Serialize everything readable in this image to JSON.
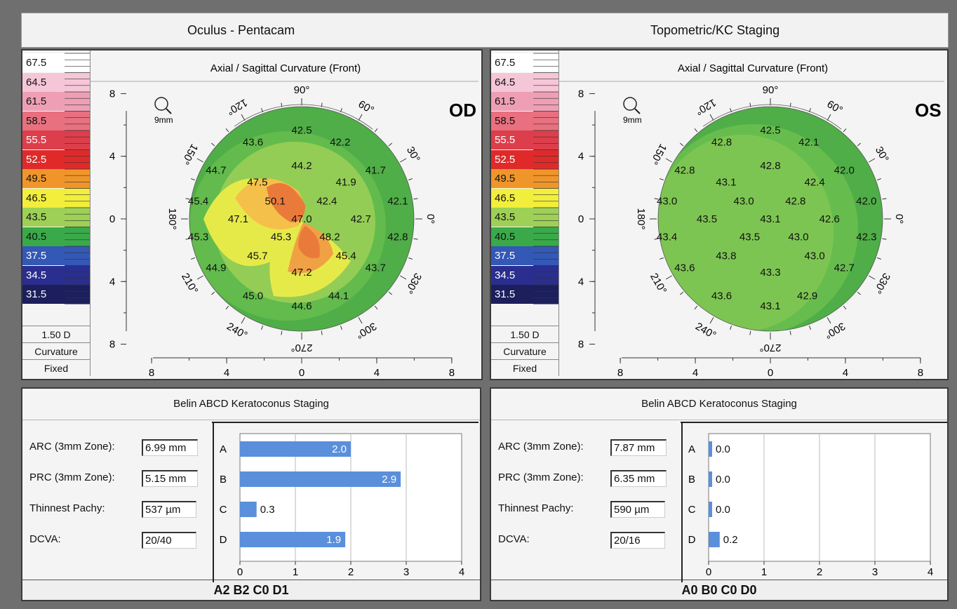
{
  "header": {
    "left_title": "Oculus - Pentacam",
    "right_title": "Topometric/KC Staging"
  },
  "scale": {
    "steps": [
      "67.5",
      "64.5",
      "61.5",
      "58.5",
      "55.5",
      "52.5",
      "49.5",
      "46.5",
      "43.5",
      "40.5",
      "37.5",
      "34.5",
      "31.5"
    ],
    "colors": [
      "#ffffff",
      "#f5c6d8",
      "#ee9fb6",
      "#e8707f",
      "#dd3e4b",
      "#e02a2a",
      "#f0952a",
      "#f2ee3c",
      "#9ed055",
      "#3aa94a",
      "#3358b6",
      "#2a2e8f",
      "#1c1f5c"
    ],
    "step_label": "1.50 D",
    "type_label": "Curvature",
    "mode_label": "Fixed"
  },
  "maps": [
    {
      "eye": "OD",
      "title": "Axial / Sagittal Curvature (Front)",
      "zoom_label": "9mm",
      "angle_labels": [
        "90°",
        "60°",
        "30°",
        "0°",
        "330°",
        "300°",
        "270°",
        "240°",
        "210°",
        "180°",
        "150°",
        "120°"
      ],
      "y_ticks": [
        "8",
        "4",
        "0",
        "4",
        "8"
      ],
      "x_ticks": [
        "8",
        "4",
        "0",
        "4",
        "8"
      ],
      "values": [
        {
          "v": "42.5",
          "x": 0.0,
          "y": 6.0
        },
        {
          "v": "43.6",
          "x": -3.3,
          "y": 5.2
        },
        {
          "v": "42.2",
          "x": 2.6,
          "y": 5.2
        },
        {
          "v": "44.7",
          "x": -5.8,
          "y": 3.3
        },
        {
          "v": "44.2",
          "x": 0.0,
          "y": 3.6
        },
        {
          "v": "41.7",
          "x": 5.0,
          "y": 3.3
        },
        {
          "v": "47.5",
          "x": -3.0,
          "y": 2.5
        },
        {
          "v": "41.9",
          "x": 3.0,
          "y": 2.5
        },
        {
          "v": "45.4",
          "x": -7.0,
          "y": 1.2
        },
        {
          "v": "50.1",
          "x": -1.8,
          "y": 1.2
        },
        {
          "v": "42.4",
          "x": 1.7,
          "y": 1.2
        },
        {
          "v": "42.1",
          "x": 6.5,
          "y": 1.2
        },
        {
          "v": "47.1",
          "x": -4.3,
          "y": 0.0
        },
        {
          "v": "47.0",
          "x": 0.0,
          "y": 0.0
        },
        {
          "v": "42.7",
          "x": 4.0,
          "y": 0.0
        },
        {
          "v": "45.3",
          "x": -7.0,
          "y": -1.2
        },
        {
          "v": "45.3",
          "x": -1.4,
          "y": -1.2
        },
        {
          "v": "48.2",
          "x": 1.9,
          "y": -1.2
        },
        {
          "v": "42.8",
          "x": 6.5,
          "y": -1.2
        },
        {
          "v": "45.7",
          "x": -3.0,
          "y": -2.5
        },
        {
          "v": "45.4",
          "x": 3.0,
          "y": -2.5
        },
        {
          "v": "44.9",
          "x": -5.8,
          "y": -3.3
        },
        {
          "v": "47.2",
          "x": 0.0,
          "y": -3.6
        },
        {
          "v": "43.7",
          "x": 5.0,
          "y": -3.3
        },
        {
          "v": "45.0",
          "x": -3.3,
          "y": -5.2
        },
        {
          "v": "44.6",
          "x": 0.0,
          "y": -5.9
        },
        {
          "v": "44.1",
          "x": 2.5,
          "y": -5.2
        }
      ]
    },
    {
      "eye": "OS",
      "title": "Axial / Sagittal Curvature (Front)",
      "zoom_label": "9mm",
      "angle_labels": [
        "90°",
        "60°",
        "30°",
        "0°",
        "330°",
        "300°",
        "270°",
        "240°",
        "210°",
        "180°",
        "150°",
        "120°"
      ],
      "y_ticks": [
        "8",
        "4",
        "0",
        "4",
        "8"
      ],
      "x_ticks": [
        "8",
        "4",
        "0",
        "4",
        "8"
      ],
      "values": [
        {
          "v": "42.5",
          "x": 0.0,
          "y": 6.0
        },
        {
          "v": "42.8",
          "x": -3.3,
          "y": 5.2
        },
        {
          "v": "42.1",
          "x": 2.6,
          "y": 5.2
        },
        {
          "v": "42.8",
          "x": -5.8,
          "y": 3.3
        },
        {
          "v": "42.8",
          "x": 0.0,
          "y": 3.6
        },
        {
          "v": "42.0",
          "x": 5.0,
          "y": 3.3
        },
        {
          "v": "43.1",
          "x": -3.0,
          "y": 2.5
        },
        {
          "v": "42.4",
          "x": 3.0,
          "y": 2.5
        },
        {
          "v": "43.0",
          "x": -7.0,
          "y": 1.2
        },
        {
          "v": "43.0",
          "x": -1.8,
          "y": 1.2
        },
        {
          "v": "42.8",
          "x": 1.7,
          "y": 1.2
        },
        {
          "v": "42.0",
          "x": 6.5,
          "y": 1.2
        },
        {
          "v": "43.5",
          "x": -4.3,
          "y": 0.0
        },
        {
          "v": "43.1",
          "x": 0.0,
          "y": 0.0
        },
        {
          "v": "42.6",
          "x": 4.0,
          "y": 0.0
        },
        {
          "v": "43.4",
          "x": -7.0,
          "y": -1.2
        },
        {
          "v": "43.5",
          "x": -1.4,
          "y": -1.2
        },
        {
          "v": "43.0",
          "x": 1.9,
          "y": -1.2
        },
        {
          "v": "42.3",
          "x": 6.5,
          "y": -1.2
        },
        {
          "v": "43.8",
          "x": -3.0,
          "y": -2.5
        },
        {
          "v": "43.0",
          "x": 3.0,
          "y": -2.5
        },
        {
          "v": "43.6",
          "x": -5.8,
          "y": -3.3
        },
        {
          "v": "43.3",
          "x": 0.0,
          "y": -3.6
        },
        {
          "v": "42.7",
          "x": 5.0,
          "y": -3.3
        },
        {
          "v": "43.6",
          "x": -3.3,
          "y": -5.2
        },
        {
          "v": "43.1",
          "x": 0.0,
          "y": -5.9
        },
        {
          "v": "42.9",
          "x": 2.5,
          "y": -5.2
        }
      ]
    }
  ],
  "staging": [
    {
      "title": "Belin ABCD Keratoconus Staging",
      "fields": [
        {
          "label": "ARC (3mm Zone):",
          "value": "6.99 mm"
        },
        {
          "label": "PRC (3mm Zone):",
          "value": "5.15 mm"
        },
        {
          "label": "Thinnest Pachy:",
          "value": "537 µm"
        },
        {
          "label": "DCVA:",
          "value": "20/40"
        }
      ],
      "chart_data": {
        "type": "bar",
        "categories": [
          "A",
          "B",
          "C",
          "D"
        ],
        "values": [
          2.0,
          2.9,
          0.3,
          1.9
        ],
        "value_labels": [
          "2.0",
          "2.9",
          "0.3",
          "1.9"
        ],
        "xlim": [
          0,
          4
        ],
        "x_ticks": [
          "0",
          "1",
          "2",
          "3",
          "4"
        ],
        "color": "#5a8fdc"
      },
      "summary": "A2 B2 C0 D1"
    },
    {
      "title": "Belin ABCD Keratoconus Staging",
      "fields": [
        {
          "label": "ARC (3mm Zone):",
          "value": "7.87 mm"
        },
        {
          "label": "PRC (3mm Zone):",
          "value": "6.35 mm"
        },
        {
          "label": "Thinnest Pachy:",
          "value": "590 µm"
        },
        {
          "label": "DCVA:",
          "value": "20/16"
        }
      ],
      "chart_data": {
        "type": "bar",
        "categories": [
          "A",
          "B",
          "C",
          "D"
        ],
        "values": [
          0.0,
          0.0,
          0.0,
          0.2
        ],
        "value_labels": [
          "0.0",
          "0.0",
          "0.0",
          "0.2"
        ],
        "xlim": [
          0,
          4
        ],
        "x_ticks": [
          "0",
          "1",
          "2",
          "3",
          "4"
        ],
        "color": "#5a8fdc"
      },
      "summary": "A0 B0 C0 D0"
    }
  ]
}
